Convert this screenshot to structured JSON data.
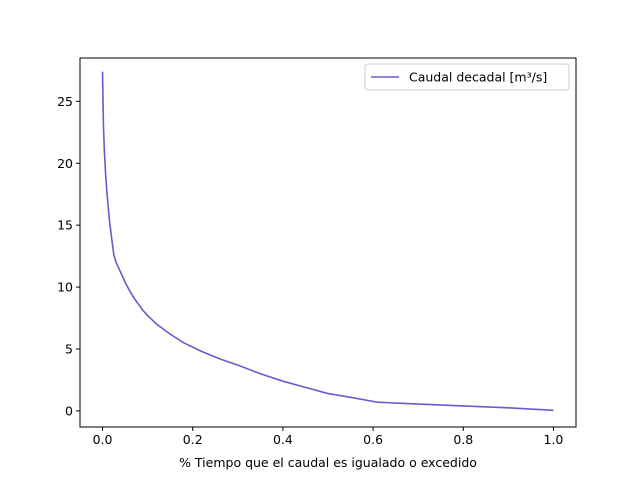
{
  "chart_data": {
    "type": "line",
    "title": "",
    "xlabel": "% Tiempo que el caudal es igualado o excedido",
    "ylabel": "",
    "xlim": [
      -0.05,
      1.05
    ],
    "ylim": [
      -1.3,
      28.5
    ],
    "xticks": [
      0.0,
      0.2,
      0.4,
      0.6,
      0.8,
      1.0
    ],
    "xtick_labels": [
      "0.0",
      "0.2",
      "0.4",
      "0.6",
      "0.8",
      "1.0"
    ],
    "yticks": [
      0,
      5,
      10,
      15,
      20,
      25
    ],
    "ytick_labels": [
      "0",
      "5",
      "10",
      "15",
      "20",
      "25"
    ],
    "grid": false,
    "legend_position": "upper right",
    "series": [
      {
        "name": "Caudal decadal [m³/s]",
        "color": "#6a5acd",
        "x": [
          0.0,
          0.001,
          0.002,
          0.004,
          0.007,
          0.01,
          0.015,
          0.02,
          0.025,
          0.03,
          0.04,
          0.05,
          0.06,
          0.07,
          0.08,
          0.09,
          0.1,
          0.12,
          0.15,
          0.18,
          0.22,
          0.26,
          0.3,
          0.35,
          0.4,
          0.45,
          0.5,
          0.55,
          0.61,
          0.7,
          0.8,
          0.9,
          1.0
        ],
        "y": [
          27.4,
          25.0,
          23.0,
          21.0,
          19.0,
          17.5,
          15.5,
          14.0,
          12.6,
          12.0,
          11.2,
          10.4,
          9.7,
          9.1,
          8.6,
          8.1,
          7.7,
          7.0,
          6.2,
          5.5,
          4.8,
          4.2,
          3.7,
          3.0,
          2.4,
          1.9,
          1.4,
          1.1,
          0.7,
          0.55,
          0.4,
          0.25,
          0.05
        ]
      }
    ]
  }
}
